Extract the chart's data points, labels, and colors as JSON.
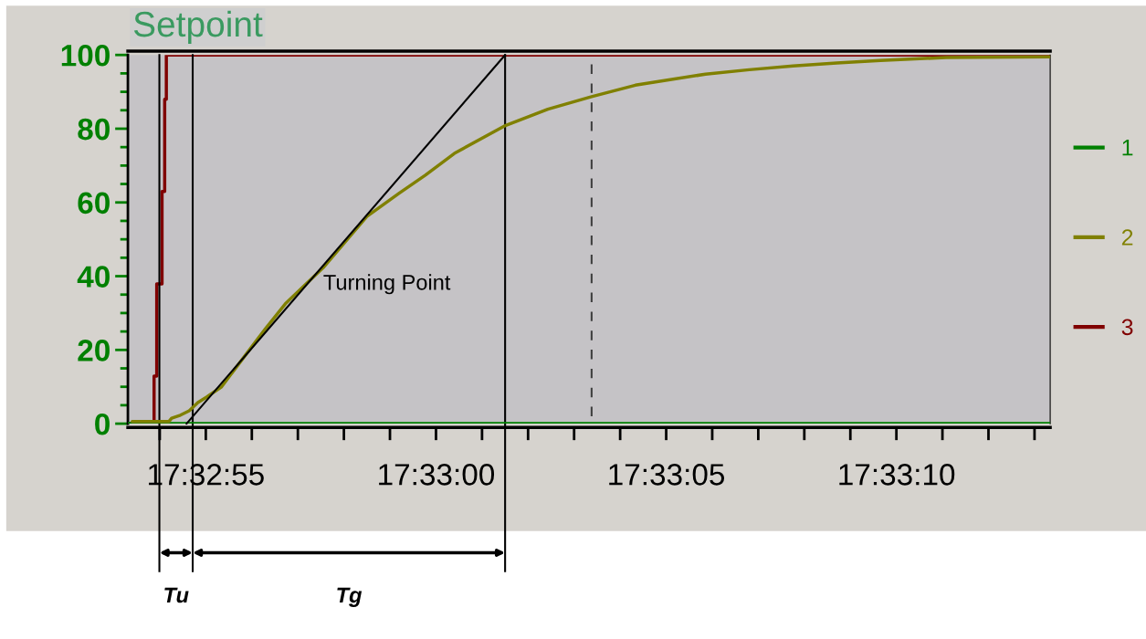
{
  "chart_data": {
    "type": "line",
    "xlim": [
      17.548141,
      17.553706
    ],
    "ylim": [
      0,
      100
    ],
    "xticks": [
      {
        "value": 17.548611,
        "label": "17:32:55"
      },
      {
        "value": 17.55,
        "label": "17:33:00"
      },
      {
        "value": 17.551389,
        "label": "17:33:05"
      },
      {
        "value": 17.552778,
        "label": "17:33:10"
      }
    ],
    "yticks": [
      0,
      20,
      40,
      60,
      80,
      100
    ],
    "grid": false,
    "legend": "right",
    "series": [
      {
        "name": "1",
        "color": "#008000",
        "x": [
          17.548141,
          17.553706
        ],
        "values": [
          0,
          0
        ]
      },
      {
        "name": "2",
        "color": "#808000",
        "x": [
          17.548167,
          17.548389,
          17.548405,
          17.548458,
          17.548511,
          17.548563,
          17.548616,
          17.548706,
          17.548827,
          17.54897,
          17.549091,
          17.549319,
          17.549583,
          17.549778,
          17.549936,
          17.550111,
          17.550411,
          17.550675,
          17.550939,
          17.551203,
          17.551626,
          17.55189,
          17.552154,
          17.552418,
          17.552682,
          17.553078,
          17.553706
        ],
        "values": [
          0.6,
          0.6,
          1.5,
          2.3,
          3.5,
          5.7,
          7.2,
          10,
          17.2,
          25.7,
          32.5,
          42.3,
          56.2,
          62.5,
          67.4,
          73.3,
          80.7,
          85.3,
          88.7,
          91.8,
          94.8,
          96,
          97,
          97.8,
          98.5,
          99.3,
          99.5
        ]
      },
      {
        "name": "3",
        "color": "#800000",
        "type": "step",
        "x": [
          17.548141,
          17.548299,
          17.548315,
          17.548347,
          17.548363,
          17.548373,
          17.553706
        ],
        "values": [
          0,
          12.9,
          37.9,
          63,
          88,
          100,
          100
        ]
      },
      {
        "color": "#000000",
        "type": "line",
        "x": [
          17.548495,
          17.550417
        ],
        "values": [
          0,
          100
        ]
      }
    ],
    "ref_lines": [
      {
        "axis": "x",
        "value": 17.548331,
        "color": "#000000",
        "line_style": "solid"
      },
      {
        "axis": "x",
        "value": 17.548532,
        "color": "#000000",
        "line_style": "solid"
      },
      {
        "axis": "x",
        "value": 17.550417,
        "color": "#000000",
        "line_style": "solid"
      },
      {
        "axis": "x",
        "value": 17.550939,
        "color": "#404040",
        "line_style": "dashed"
      }
    ],
    "annotations": [
      "Setpoint",
      {
        "text": "Turning Point",
        "x": 17.549319,
        "y": 42.3
      },
      "Tu",
      "Tg"
    ]
  }
}
